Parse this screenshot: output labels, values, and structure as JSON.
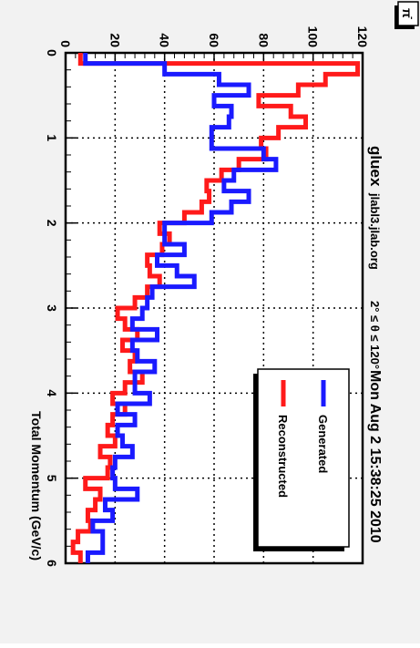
{
  "header": {
    "corner_label": "π",
    "corner_label_sup": "-",
    "timestamp": "Mon Aug  2 15:38:25 2010",
    "experiment": "gluex",
    "host": "jlabl3.jlab.org",
    "cut_label": "2° ≤ θ ≤ 120°"
  },
  "colors": {
    "generated": "#1a1aff",
    "reconstructed": "#ff1a1a",
    "background": "#f2f2f2",
    "frame": "#ffffff"
  },
  "chart_data": {
    "type": "line",
    "title": "",
    "xlabel": "Total Momentum (GeV/c)",
    "ylabel": "",
    "xlim": [
      0,
      6
    ],
    "ylim": [
      0,
      120
    ],
    "xticks": [
      "0",
      "1",
      "2",
      "3",
      "4",
      "5",
      "6"
    ],
    "yticks": [
      "0",
      "20",
      "40",
      "60",
      "80",
      "100",
      "120"
    ],
    "grid": true,
    "legend_position": "top-right",
    "bin_width": 0.125,
    "series": [
      {
        "name": "Generated",
        "color": "#1a1aff",
        "values": [
          8,
          40,
          62,
          74,
          60,
          67,
          66,
          59,
          59,
          80,
          85,
          68,
          64,
          74,
          67,
          59,
          40,
          40,
          48,
          37,
          45,
          52,
          35,
          33,
          31,
          27,
          37,
          27,
          29,
          36,
          28,
          28,
          34,
          21,
          28,
          21,
          23,
          27,
          20,
          19,
          20,
          29,
          16,
          19,
          11,
          15,
          15,
          9
        ]
      },
      {
        "name": "Reconstructed",
        "color": "#ff1a1a",
        "values": [
          6,
          118,
          105,
          94,
          78,
          91,
          97,
          86,
          79,
          81,
          70,
          63,
          57,
          58,
          55,
          48,
          38,
          42,
          39,
          33,
          34,
          38,
          33,
          28,
          21,
          24,
          29,
          23,
          28,
          26,
          31,
          24,
          19,
          24,
          19,
          17,
          20,
          14,
          18,
          17,
          8,
          14,
          12,
          9,
          10,
          5,
          3,
          6
        ]
      }
    ]
  }
}
